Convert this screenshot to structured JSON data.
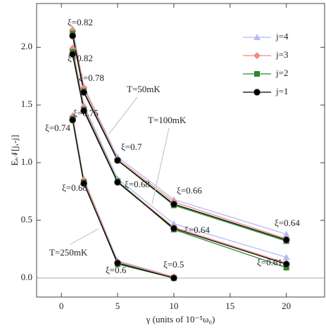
{
  "chart_data": {
    "type": "line",
    "x_label": "γ (units of 10⁻⁵ω₀)",
    "y_label": "E𝒩[j,-j]",
    "x": [
      1,
      2,
      5,
      10,
      20
    ],
    "series": [
      {
        "name": "j=4",
        "color": "#b4bcf2",
        "marker": "triangle",
        "values": [
          [
            2.16,
            1.66,
            1.05,
            0.68,
            0.38
          ],
          [
            2.0,
            1.5,
            0.86,
            0.47,
            0.18
          ],
          [
            1.41,
            0.86,
            0.15,
            0.01,
            null
          ]
        ]
      },
      {
        "name": "j=3",
        "color": "#f08a80",
        "marker": "diamond",
        "values": [
          [
            2.15,
            1.65,
            1.03,
            0.66,
            0.34
          ],
          [
            1.99,
            1.48,
            0.84,
            0.44,
            0.13
          ],
          [
            1.4,
            0.85,
            0.14,
            0.01,
            null
          ]
        ]
      },
      {
        "name": "j=2",
        "color": "#2a8a2a",
        "marker": "square",
        "values": [
          [
            2.12,
            1.62,
            1.02,
            0.63,
            0.32
          ],
          [
            1.96,
            1.46,
            0.84,
            0.42,
            0.09
          ],
          [
            1.38,
            0.83,
            0.12,
            0.0,
            null
          ]
        ]
      },
      {
        "name": "j=1",
        "color": "#000000",
        "marker": "circle",
        "values": [
          [
            2.1,
            1.61,
            1.02,
            0.64,
            0.33
          ],
          [
            1.94,
            1.45,
            0.83,
            0.43,
            0.12
          ],
          [
            1.37,
            0.82,
            0.13,
            0.0,
            null
          ]
        ]
      }
    ],
    "annotations": [
      "ξ=0.82",
      "ξ=0.82",
      "ξ=0.78",
      "ξ=0.75",
      "ξ=0.74",
      "ξ=0.68",
      "ξ=0.7",
      "ξ=0.68",
      "ξ=0.66",
      "ξ=0.64",
      "ξ=0.64",
      "ξ=0.61",
      "ξ=0.6",
      "ξ=0.5",
      "T=50mK",
      "T=100mK",
      "T=250mK"
    ],
    "xlim": [
      -2.2,
      23.4
    ],
    "ylim": [
      -0.165,
      2.38
    ],
    "xticks": [
      0,
      5,
      10,
      15,
      20
    ],
    "yticks": [
      {
        "value": 0,
        "label": "0.0"
      },
      {
        "value": 0.5,
        "label": "0.5"
      },
      {
        "value": 1,
        "label": "1.0"
      },
      {
        "value": 1.5,
        "label": "1.5"
      },
      {
        "value": 2,
        "label": "2.0"
      }
    ],
    "legend": "top-right"
  }
}
